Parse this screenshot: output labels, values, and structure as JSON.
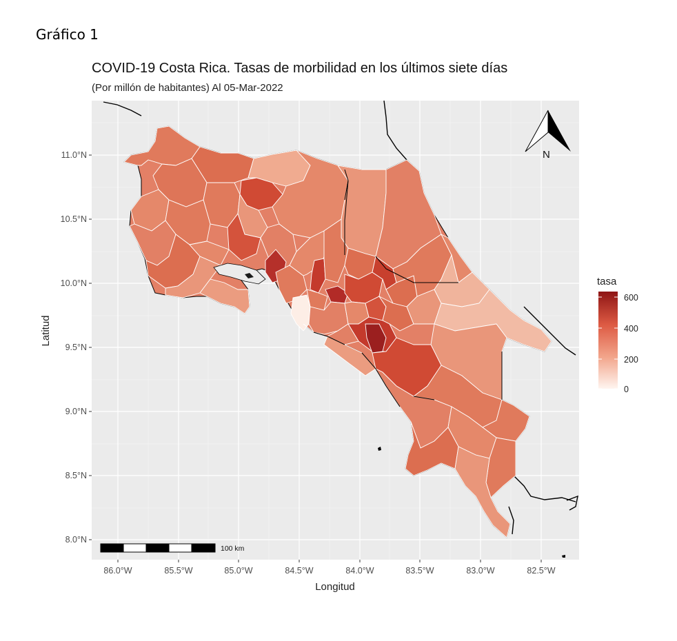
{
  "figure_label": "Gráfico 1",
  "map": {
    "title": "COVID-19 Costa Rica. Tasas de morbilidad en los últimos siete días",
    "subtitle": "(Por millón de habitantes) Al 05-Mar-2022",
    "x_axis_title": "Longitud",
    "y_axis_title": "Latitud",
    "x_ticks": [
      "86.0°W",
      "85.5°W",
      "85.0°W",
      "84.5°W",
      "84.0°W",
      "83.5°W",
      "83.0°W",
      "82.5°W"
    ],
    "y_ticks": [
      "11.0°N",
      "10.5°N",
      "10.0°N",
      "9.5°N",
      "9.0°N",
      "8.5°N",
      "8.0°N"
    ],
    "north_arrow_label": "N",
    "scale_bar_label": "100 km",
    "legend": {
      "title": "tasa",
      "ticks": [
        "600",
        "400",
        "200",
        "0"
      ],
      "color_low": "#fff5f0",
      "color_high": "#8e1515"
    },
    "colors": {
      "panel_background": "#ebebeb",
      "grid": "#ffffff",
      "region_fill_typical": "#e07a5c",
      "region_fill_light": "#f0b49c",
      "region_fill_dark": "#b8302a"
    }
  }
}
